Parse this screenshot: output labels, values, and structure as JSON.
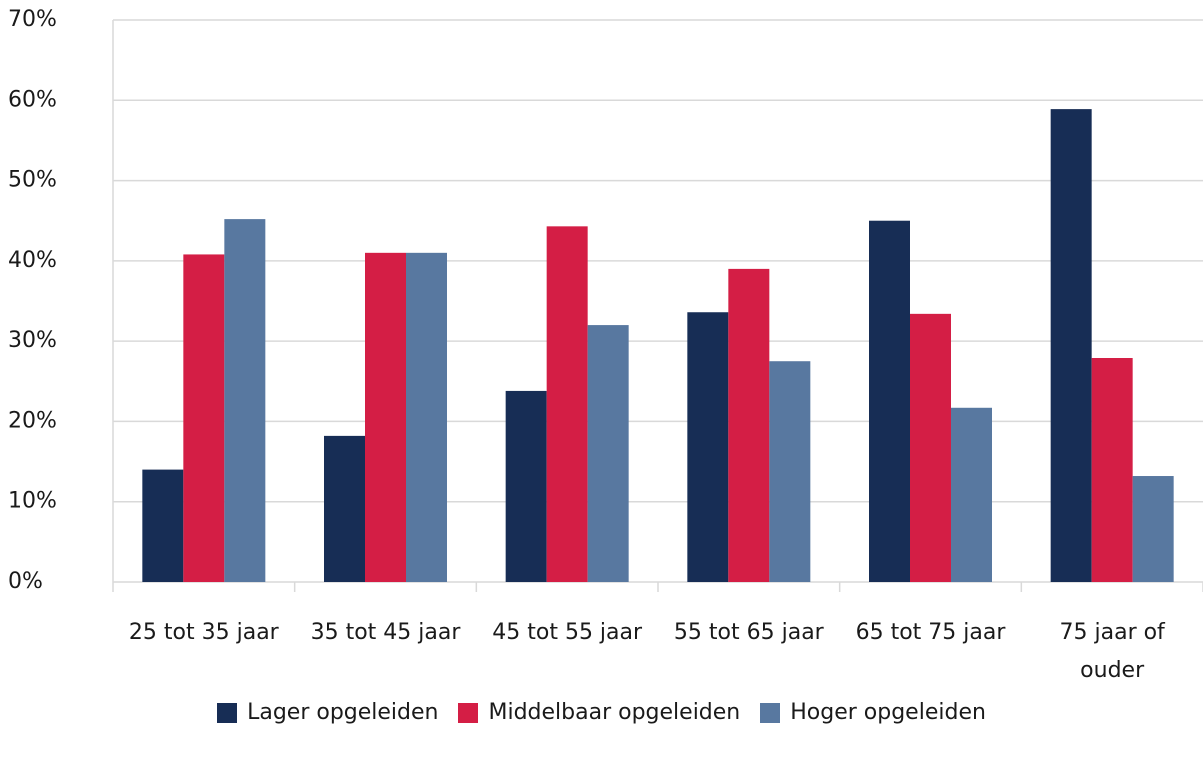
{
  "chart_data": {
    "type": "bar",
    "categories": [
      "25 tot 35 jaar",
      "35 tot 45 jaar",
      "45 tot 55 jaar",
      "55 tot 65 jaar",
      "65 tot 75 jaar",
      "75 jaar of ouder"
    ],
    "series": [
      {
        "name": "Lager opgeleiden",
        "color": "#172d55",
        "values": [
          14,
          18.2,
          23.8,
          33.6,
          45,
          58.9
        ]
      },
      {
        "name": "Middelbaar opgeleiden",
        "color": "#d41e45",
        "values": [
          40.8,
          41,
          44.3,
          39,
          33.4,
          27.9
        ]
      },
      {
        "name": "Hoger opgeleiden",
        "color": "#5878a0",
        "values": [
          45.2,
          41,
          32,
          27.5,
          21.7,
          13.2
        ]
      }
    ],
    "ylim": [
      0,
      70
    ],
    "yticks": [
      {
        "value": 0,
        "label": "0%"
      },
      {
        "value": 10,
        "label": "10%"
      },
      {
        "value": 20,
        "label": "20%"
      },
      {
        "value": 30,
        "label": "30%"
      },
      {
        "value": 40,
        "label": "40%"
      },
      {
        "value": 50,
        "label": "50%"
      },
      {
        "value": 60,
        "label": "60%"
      },
      {
        "value": 70,
        "label": "70%"
      }
    ],
    "grid": true,
    "legend": "bottom"
  }
}
